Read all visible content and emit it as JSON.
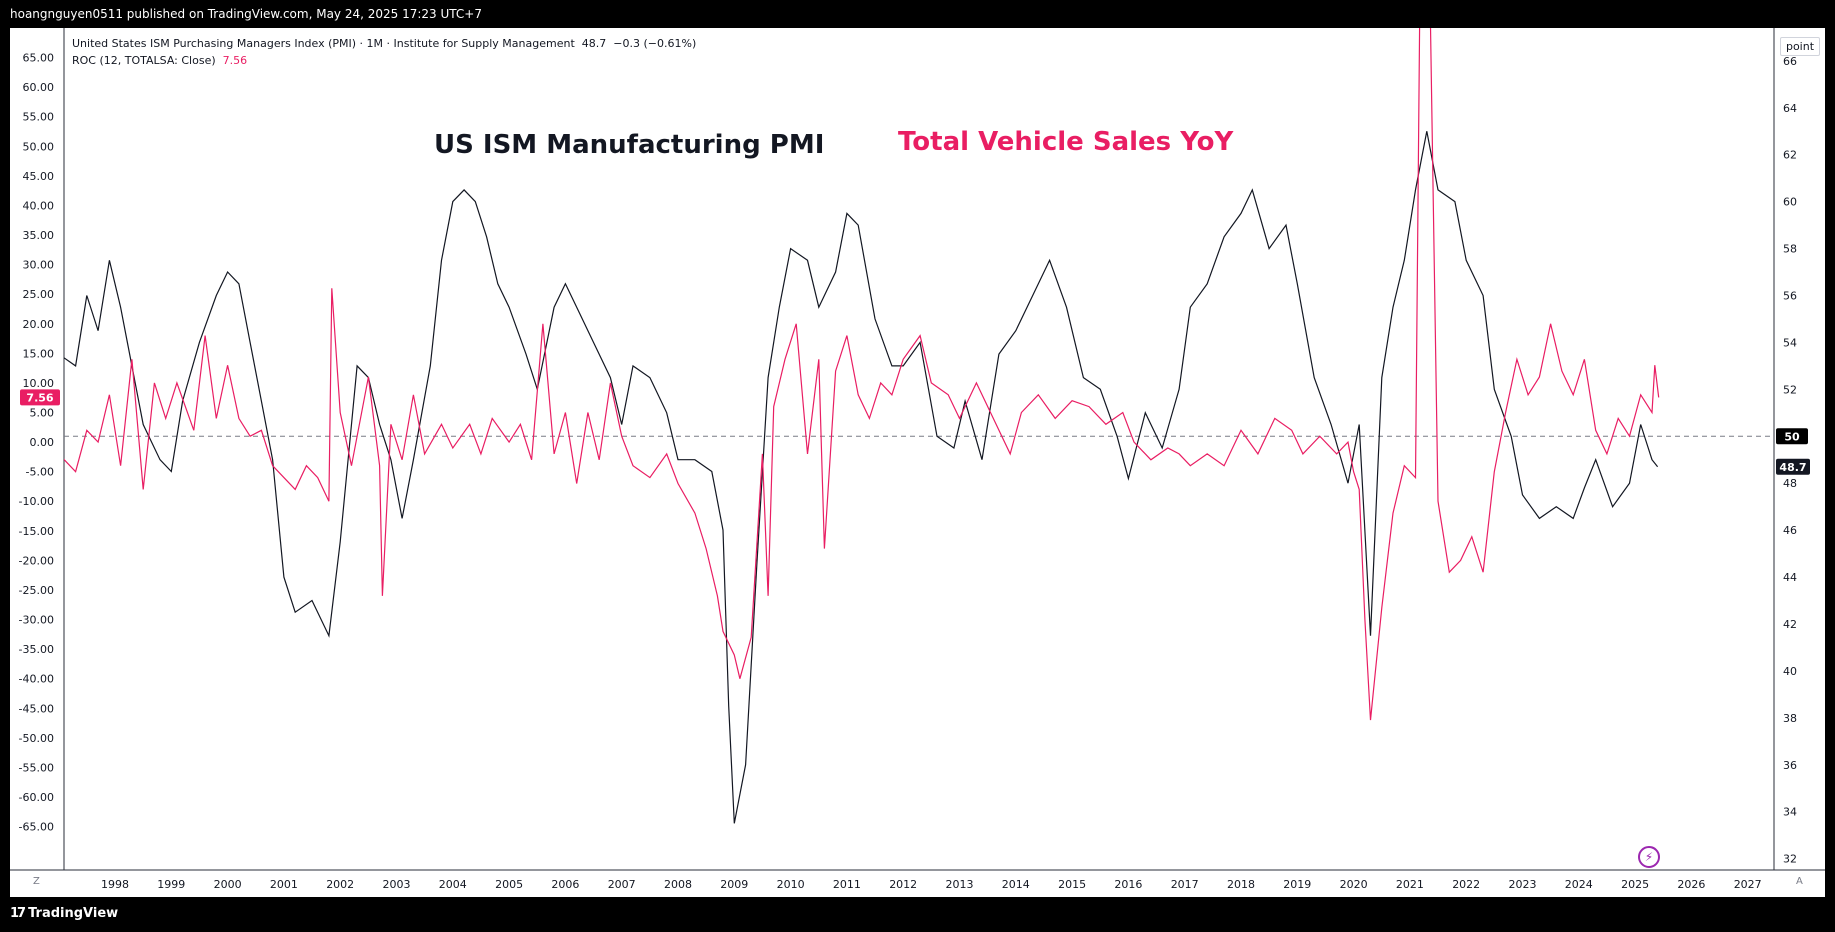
{
  "header": {
    "published_text": "hoangnguyen0511 published on TradingView.com, May 24, 2025 17:23 UTC+7"
  },
  "legend": {
    "series1_text": "United States ISM Purchasing Managers Index (PMI) · 1M · Institute for Supply Management",
    "series1_value": "48.7",
    "series1_change": "−0.3 (−0.61%)",
    "series2_text": "ROC (12, TOTALSA: Close)",
    "series2_value": "7.56"
  },
  "annotations": {
    "pmi_title": "US ISM Manufacturing PMI",
    "vehicle_title": "Total Vehicle Sales YoY"
  },
  "right_scale": {
    "unit_label": "point"
  },
  "corners": {
    "left": "Z",
    "right": "A"
  },
  "footer": {
    "brand": "TradingView"
  },
  "colors": {
    "pmi": "#131722",
    "vehicle": "#e91e63",
    "background": "#ffffff"
  },
  "chart_data": {
    "type": "line",
    "x_ticks": [
      "1998",
      "1999",
      "2000",
      "2001",
      "2002",
      "2003",
      "2004",
      "2005",
      "2006",
      "2007",
      "2008",
      "2009",
      "2010",
      "2011",
      "2012",
      "2013",
      "2014",
      "2015",
      "2016",
      "2017",
      "2018",
      "2019",
      "2020",
      "2021",
      "2022",
      "2023",
      "2024",
      "2025",
      "2026",
      "2027"
    ],
    "left_axis": {
      "ticks": [
        "65.00",
        "60.00",
        "55.00",
        "50.00",
        "45.00",
        "40.00",
        "35.00",
        "30.00",
        "25.00",
        "20.00",
        "15.00",
        "10.00",
        "5.00",
        "0.00",
        "-5.00",
        "-10.00",
        "-15.00",
        "-20.00",
        "-25.00",
        "-30.00",
        "-35.00",
        "-40.00",
        "-45.00",
        "-50.00",
        "-55.00",
        "-60.00",
        "-65.00"
      ],
      "range": [
        -72,
        70
      ]
    },
    "right_axis": {
      "ticks": [
        "66",
        "64",
        "62",
        "60",
        "58",
        "56",
        "54",
        "52",
        "50",
        "48",
        "46",
        "44",
        "42",
        "40",
        "38",
        "36",
        "34",
        "32"
      ],
      "range": [
        31.6,
        67.4
      ]
    },
    "reference_line": {
      "axis": "right",
      "value": 50,
      "label": "50"
    },
    "last_value_labels": {
      "pmi": "48.7",
      "vehicle": "7.56"
    },
    "series": [
      {
        "name": "United States ISM Purchasing Managers Index (PMI)",
        "axis": "right",
        "points": [
          [
            1997.0,
            53.5
          ],
          [
            1997.3,
            53.0
          ],
          [
            1997.5,
            56.0
          ],
          [
            1997.7,
            54.5
          ],
          [
            1997.9,
            57.5
          ],
          [
            1998.1,
            55.5
          ],
          [
            1998.3,
            53.0
          ],
          [
            1998.5,
            50.5
          ],
          [
            1998.8,
            49.0
          ],
          [
            1999.0,
            48.5
          ],
          [
            1999.2,
            51.5
          ],
          [
            1999.5,
            54.0
          ],
          [
            1999.8,
            56.0
          ],
          [
            2000.0,
            57.0
          ],
          [
            2000.2,
            56.5
          ],
          [
            2000.4,
            54.0
          ],
          [
            2000.6,
            51.5
          ],
          [
            2000.8,
            49.0
          ],
          [
            2001.0,
            44.0
          ],
          [
            2001.2,
            42.5
          ],
          [
            2001.5,
            43.0
          ],
          [
            2001.8,
            41.5
          ],
          [
            2002.0,
            45.5
          ],
          [
            2002.3,
            53.0
          ],
          [
            2002.5,
            52.5
          ],
          [
            2002.7,
            50.5
          ],
          [
            2002.9,
            49.0
          ],
          [
            2003.1,
            46.5
          ],
          [
            2003.3,
            49.0
          ],
          [
            2003.6,
            53.0
          ],
          [
            2003.8,
            57.5
          ],
          [
            2004.0,
            60.0
          ],
          [
            2004.2,
            60.5
          ],
          [
            2004.4,
            60.0
          ],
          [
            2004.6,
            58.5
          ],
          [
            2004.8,
            56.5
          ],
          [
            2005.0,
            55.5
          ],
          [
            2005.3,
            53.5
          ],
          [
            2005.5,
            52.0
          ],
          [
            2005.8,
            55.5
          ],
          [
            2006.0,
            56.5
          ],
          [
            2006.2,
            55.5
          ],
          [
            2006.5,
            54.0
          ],
          [
            2006.8,
            52.5
          ],
          [
            2007.0,
            50.5
          ],
          [
            2007.2,
            53.0
          ],
          [
            2007.5,
            52.5
          ],
          [
            2007.8,
            51.0
          ],
          [
            2008.0,
            49.0
          ],
          [
            2008.3,
            49.0
          ],
          [
            2008.6,
            48.5
          ],
          [
            2008.8,
            46.0
          ],
          [
            2008.9,
            38.5
          ],
          [
            2009.0,
            33.5
          ],
          [
            2009.2,
            36.0
          ],
          [
            2009.4,
            44.5
          ],
          [
            2009.6,
            52.5
          ],
          [
            2009.8,
            55.5
          ],
          [
            2010.0,
            58.0
          ],
          [
            2010.3,
            57.5
          ],
          [
            2010.5,
            55.5
          ],
          [
            2010.8,
            57.0
          ],
          [
            2011.0,
            59.5
          ],
          [
            2011.2,
            59.0
          ],
          [
            2011.5,
            55.0
          ],
          [
            2011.8,
            53.0
          ],
          [
            2012.0,
            53.0
          ],
          [
            2012.3,
            54.0
          ],
          [
            2012.6,
            50.0
          ],
          [
            2012.9,
            49.5
          ],
          [
            2013.1,
            51.5
          ],
          [
            2013.4,
            49.0
          ],
          [
            2013.7,
            53.5
          ],
          [
            2014.0,
            54.5
          ],
          [
            2014.3,
            56.0
          ],
          [
            2014.6,
            57.5
          ],
          [
            2014.9,
            55.5
          ],
          [
            2015.2,
            52.5
          ],
          [
            2015.5,
            52.0
          ],
          [
            2015.8,
            50.0
          ],
          [
            2016.0,
            48.2
          ],
          [
            2016.3,
            51.0
          ],
          [
            2016.6,
            49.5
          ],
          [
            2016.9,
            52.0
          ],
          [
            2017.1,
            55.5
          ],
          [
            2017.4,
            56.5
          ],
          [
            2017.7,
            58.5
          ],
          [
            2018.0,
            59.5
          ],
          [
            2018.2,
            60.5
          ],
          [
            2018.5,
            58.0
          ],
          [
            2018.8,
            59.0
          ],
          [
            2019.0,
            56.5
          ],
          [
            2019.3,
            52.5
          ],
          [
            2019.6,
            50.5
          ],
          [
            2019.9,
            48.0
          ],
          [
            2020.1,
            50.5
          ],
          [
            2020.3,
            41.5
          ],
          [
            2020.5,
            52.5
          ],
          [
            2020.7,
            55.5
          ],
          [
            2020.9,
            57.5
          ],
          [
            2021.1,
            60.5
          ],
          [
            2021.3,
            63.0
          ],
          [
            2021.5,
            60.5
          ],
          [
            2021.8,
            60.0
          ],
          [
            2022.0,
            57.5
          ],
          [
            2022.3,
            56.0
          ],
          [
            2022.5,
            52.0
          ],
          [
            2022.8,
            50.0
          ],
          [
            2023.0,
            47.5
          ],
          [
            2023.3,
            46.5
          ],
          [
            2023.6,
            47.0
          ],
          [
            2023.9,
            46.5
          ],
          [
            2024.1,
            47.8
          ],
          [
            2024.3,
            49.0
          ],
          [
            2024.6,
            47.0
          ],
          [
            2024.9,
            48.0
          ],
          [
            2025.1,
            50.5
          ],
          [
            2025.3,
            49.0
          ],
          [
            2025.4,
            48.7
          ]
        ]
      },
      {
        "name": "ROC (12, TOTALSA: Close)",
        "axis": "left",
        "points": [
          [
            1997.0,
            -2.0
          ],
          [
            1997.3,
            -5.0
          ],
          [
            1997.5,
            2.0
          ],
          [
            1997.7,
            0.0
          ],
          [
            1997.9,
            8.0
          ],
          [
            1998.1,
            -4.0
          ],
          [
            1998.3,
            14.0
          ],
          [
            1998.5,
            -8.0
          ],
          [
            1998.7,
            10.0
          ],
          [
            1998.9,
            4.0
          ],
          [
            1999.1,
            10.0
          ],
          [
            1999.4,
            2.0
          ],
          [
            1999.6,
            18.0
          ],
          [
            1999.8,
            4.0
          ],
          [
            2000.0,
            13.0
          ],
          [
            2000.2,
            4.0
          ],
          [
            2000.4,
            1.0
          ],
          [
            2000.6,
            2.0
          ],
          [
            2000.8,
            -4.0
          ],
          [
            2001.0,
            -6.0
          ],
          [
            2001.2,
            -8.0
          ],
          [
            2001.4,
            -4.0
          ],
          [
            2001.6,
            -6.0
          ],
          [
            2001.8,
            -10.0
          ],
          [
            2001.85,
            26.0
          ],
          [
            2002.0,
            5.0
          ],
          [
            2002.2,
            -4.0
          ],
          [
            2002.5,
            11.0
          ],
          [
            2002.7,
            -4.0
          ],
          [
            2002.75,
            -26.0
          ],
          [
            2002.9,
            3.0
          ],
          [
            2003.1,
            -3.0
          ],
          [
            2003.3,
            8.0
          ],
          [
            2003.5,
            -2.0
          ],
          [
            2003.8,
            3.0
          ],
          [
            2004.0,
            -1.0
          ],
          [
            2004.3,
            3.0
          ],
          [
            2004.5,
            -2.0
          ],
          [
            2004.7,
            4.0
          ],
          [
            2005.0,
            0.0
          ],
          [
            2005.2,
            3.0
          ],
          [
            2005.4,
            -3.0
          ],
          [
            2005.6,
            20.0
          ],
          [
            2005.8,
            -2.0
          ],
          [
            2006.0,
            5.0
          ],
          [
            2006.2,
            -7.0
          ],
          [
            2006.4,
            5.0
          ],
          [
            2006.6,
            -3.0
          ],
          [
            2006.8,
            10.0
          ],
          [
            2007.0,
            1.0
          ],
          [
            2007.2,
            -4.0
          ],
          [
            2007.5,
            -6.0
          ],
          [
            2007.8,
            -2.0
          ],
          [
            2008.0,
            -7.0
          ],
          [
            2008.3,
            -12.0
          ],
          [
            2008.5,
            -18.0
          ],
          [
            2008.7,
            -26.0
          ],
          [
            2008.8,
            -32.0
          ],
          [
            2009.0,
            -36.0
          ],
          [
            2009.1,
            -40.0
          ],
          [
            2009.3,
            -33.0
          ],
          [
            2009.5,
            -2.0
          ],
          [
            2009.6,
            -26.0
          ],
          [
            2009.7,
            6.0
          ],
          [
            2009.9,
            14.0
          ],
          [
            2010.1,
            20.0
          ],
          [
            2010.3,
            -2.0
          ],
          [
            2010.5,
            14.0
          ],
          [
            2010.6,
            -18.0
          ],
          [
            2010.8,
            12.0
          ],
          [
            2011.0,
            18.0
          ],
          [
            2011.2,
            8.0
          ],
          [
            2011.4,
            4.0
          ],
          [
            2011.6,
            10.0
          ],
          [
            2011.8,
            8.0
          ],
          [
            2012.0,
            14.0
          ],
          [
            2012.3,
            18.0
          ],
          [
            2012.5,
            10.0
          ],
          [
            2012.8,
            8.0
          ],
          [
            2013.0,
            4.0
          ],
          [
            2013.3,
            10.0
          ],
          [
            2013.6,
            4.0
          ],
          [
            2013.9,
            -2.0
          ],
          [
            2014.1,
            5.0
          ],
          [
            2014.4,
            8.0
          ],
          [
            2014.7,
            4.0
          ],
          [
            2015.0,
            7.0
          ],
          [
            2015.3,
            6.0
          ],
          [
            2015.6,
            3.0
          ],
          [
            2015.9,
            5.0
          ],
          [
            2016.1,
            0.0
          ],
          [
            2016.4,
            -3.0
          ],
          [
            2016.7,
            -1.0
          ],
          [
            2016.9,
            -2.0
          ],
          [
            2017.1,
            -4.0
          ],
          [
            2017.4,
            -2.0
          ],
          [
            2017.7,
            -4.0
          ],
          [
            2018.0,
            2.0
          ],
          [
            2018.3,
            -2.0
          ],
          [
            2018.6,
            4.0
          ],
          [
            2018.9,
            2.0
          ],
          [
            2019.1,
            -2.0
          ],
          [
            2019.4,
            1.0
          ],
          [
            2019.7,
            -2.0
          ],
          [
            2019.9,
            0.0
          ],
          [
            2020.0,
            -5.0
          ],
          [
            2020.1,
            -8.0
          ],
          [
            2020.2,
            -30.0
          ],
          [
            2020.3,
            -47.0
          ],
          [
            2020.5,
            -28.0
          ],
          [
            2020.7,
            -12.0
          ],
          [
            2020.9,
            -4.0
          ],
          [
            2021.1,
            -6.0
          ],
          [
            2021.2,
            100.0
          ],
          [
            2021.35,
            80.0
          ],
          [
            2021.5,
            -10.0
          ],
          [
            2021.7,
            -22.0
          ],
          [
            2021.9,
            -20.0
          ],
          [
            2022.1,
            -16.0
          ],
          [
            2022.3,
            -22.0
          ],
          [
            2022.5,
            -5.0
          ],
          [
            2022.7,
            5.0
          ],
          [
            2022.9,
            14.0
          ],
          [
            2023.1,
            8.0
          ],
          [
            2023.3,
            11.0
          ],
          [
            2023.5,
            20.0
          ],
          [
            2023.7,
            12.0
          ],
          [
            2023.9,
            8.0
          ],
          [
            2024.1,
            14.0
          ],
          [
            2024.3,
            2.0
          ],
          [
            2024.5,
            -2.0
          ],
          [
            2024.7,
            4.0
          ],
          [
            2024.9,
            1.0
          ],
          [
            2025.1,
            8.0
          ],
          [
            2025.3,
            5.0
          ],
          [
            2025.35,
            13.0
          ],
          [
            2025.42,
            7.56
          ]
        ]
      }
    ]
  }
}
